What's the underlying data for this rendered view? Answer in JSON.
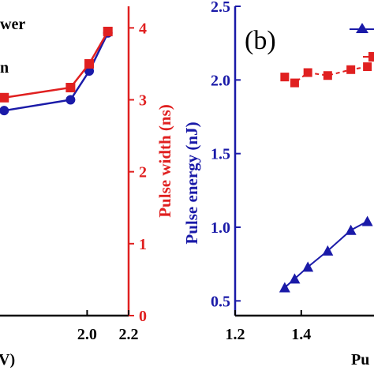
{
  "colors": {
    "blue": "#1a1aa8",
    "red": "#e02020",
    "axis": "#000000"
  },
  "chart_data": [
    {
      "panel": "left",
      "type": "line",
      "y2label": "Pulse width (ns)",
      "xlabel_fragment": "V)",
      "legend_fragments": [
        "wer",
        "n"
      ],
      "x_ticks": [
        "2.0",
        "2.2"
      ],
      "y2_ticks": [
        "0",
        "1",
        "2",
        "3",
        "4"
      ],
      "y2lim": [
        0,
        4.3
      ],
      "xlim": [
        1.58,
        2.2
      ],
      "series": [
        {
          "marker": "circle",
          "color": "#1a1aa8",
          "x": [
            1.6,
            1.92,
            2.01,
            2.1
          ],
          "y": [
            2.85,
            3.0,
            3.4,
            3.93
          ]
        },
        {
          "marker": "square",
          "color": "#e02020",
          "x": [
            1.6,
            1.92,
            2.01,
            2.1
          ],
          "y": [
            3.03,
            3.17,
            3.5,
            3.95
          ]
        }
      ]
    },
    {
      "panel": "right",
      "type": "line",
      "panel_label": "(b)",
      "ylabel": "Pulse energy (nJ)",
      "xlabel_fragment": "Pu",
      "x_ticks": [
        "1.2",
        "1.4"
      ],
      "y_ticks": [
        "0.5",
        "1.0",
        "1.5",
        "2.0",
        "2.5"
      ],
      "xlim": [
        1.2,
        1.62
      ],
      "ylim": [
        0.4,
        2.5
      ],
      "series": [
        {
          "marker": "triangle",
          "color": "#1a1aa8",
          "x": [
            1.35,
            1.38,
            1.42,
            1.48,
            1.55,
            1.6
          ],
          "y": [
            0.59,
            0.65,
            0.73,
            0.84,
            0.98,
            1.04
          ]
        },
        {
          "marker": "square",
          "color": "#e02020",
          "x": [
            1.35,
            1.38,
            1.42,
            1.48,
            1.55,
            1.6
          ],
          "y": [
            2.02,
            1.98,
            2.05,
            2.03,
            2.07,
            2.09
          ]
        }
      ]
    }
  ]
}
